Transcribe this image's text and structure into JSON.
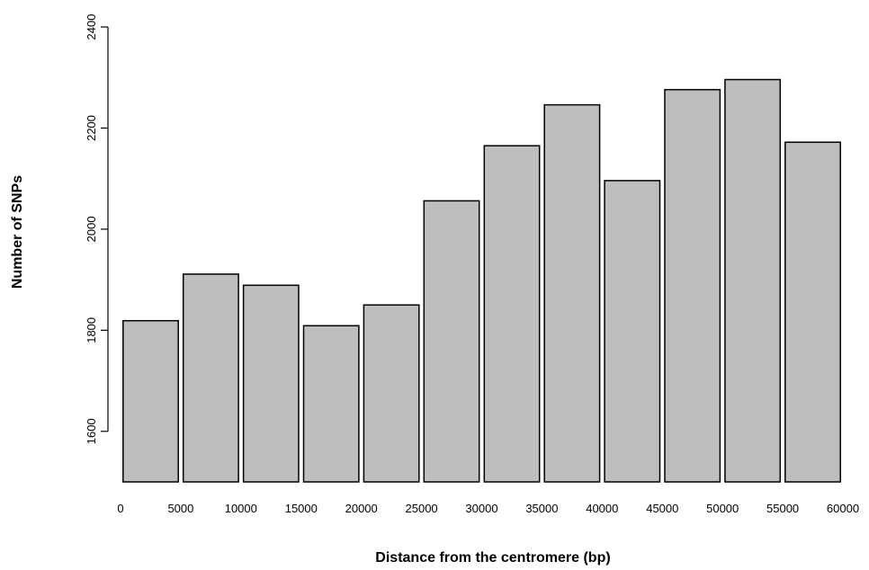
{
  "chart_data": {
    "type": "bar",
    "title": "",
    "xlabel": "Distance from the centromere (bp)",
    "ylabel": "Number of SNPs",
    "x_ticks": [
      "0",
      "5000",
      "10000",
      "15000",
      "20000",
      "25000",
      "30000",
      "35000",
      "40000",
      "45000",
      "50000",
      "55000",
      "60000"
    ],
    "y_ticks": [
      "1600",
      "1800",
      "2000",
      "2200",
      "2400"
    ],
    "ylim": [
      1500,
      2400
    ],
    "bin_width": 5000,
    "categories": [
      "0-5000",
      "5000-10000",
      "10000-15000",
      "15000-20000",
      "20000-25000",
      "25000-30000",
      "30000-35000",
      "35000-40000",
      "40000-45000",
      "45000-50000",
      "50000-55000",
      "55000-60000"
    ],
    "values": [
      1819,
      1911,
      1889,
      1809,
      1850,
      2056,
      2165,
      2246,
      2096,
      2276,
      2296,
      2172
    ],
    "bar_fill": "#bebebe",
    "bar_stroke": "#000000",
    "grid": false,
    "legend": "none"
  }
}
